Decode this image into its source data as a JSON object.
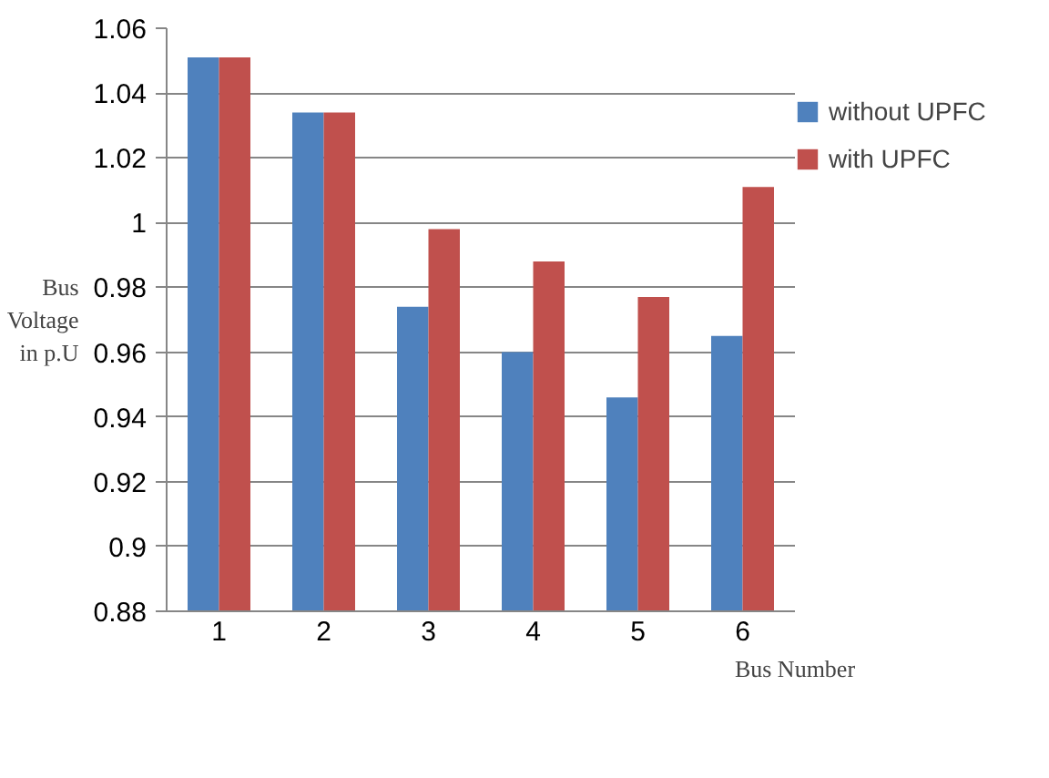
{
  "chart_data": {
    "type": "bar",
    "xlabel": "Bus Number",
    "ylabel": "Bus Voltage in p.U",
    "categories": [
      "1",
      "2",
      "3",
      "4",
      "5",
      "6"
    ],
    "series": [
      {
        "name": "without UPFC",
        "color": "#4f81bd",
        "values": [
          1.051,
          1.034,
          0.974,
          0.96,
          0.946,
          0.965
        ]
      },
      {
        "name": "with UPFC",
        "color": "#c0504d",
        "values": [
          1.051,
          1.034,
          0.998,
          0.988,
          0.977,
          1.011
        ]
      }
    ],
    "ylim": [
      0.88,
      1.06
    ],
    "yticks": [
      0.88,
      0.9,
      0.92,
      0.94,
      0.96,
      0.98,
      1,
      1.02,
      1.04,
      1.06
    ],
    "grid": "y",
    "legend": "right"
  }
}
